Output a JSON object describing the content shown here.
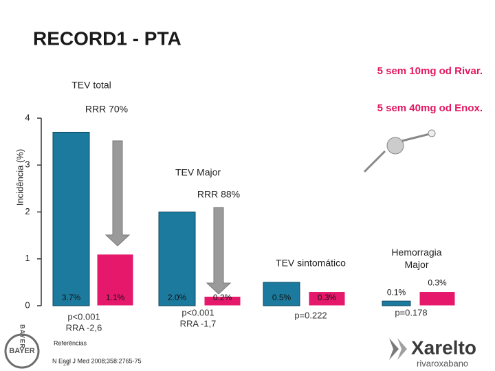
{
  "title": "RECORD1 - PTA",
  "chart_data": {
    "type": "bar",
    "y_label": "Incidência (%)",
    "categories": [
      "TEV total",
      "TEV Major",
      "TEV sintomático",
      "Hemorragia Major"
    ],
    "series": [
      {
        "name": "5 sem 40mg od Enox.",
        "color": "#1b7a9d",
        "values": [
          3.7,
          2.0,
          0.5,
          0.1
        ],
        "value_labels": [
          "3.7%",
          "2.0%",
          "0.5%",
          "0.1%"
        ]
      },
      {
        "name": "5 sem 10mg od Rivar.",
        "color": "#e5186c",
        "values": [
          1.1,
          0.2,
          0.3,
          0.3
        ],
        "value_labels": [
          "1.1%",
          "0.2%",
          "0.3%",
          "0.3%"
        ]
      }
    ],
    "ylim": [
      0,
      4
    ],
    "yticks": [
      0,
      1,
      2,
      3,
      4
    ],
    "annotations": [
      {
        "rrr": "RRR 70%",
        "p": "p<0.001",
        "rra": "RRA -2,6"
      },
      {
        "rrr": "RRR 88%",
        "p": "p<0.001",
        "rra": "RRA -1,7"
      },
      {
        "p": "p=0.222"
      },
      {
        "p": "p=0.178"
      }
    ]
  },
  "references": {
    "heading": "Referências",
    "citation": "N Engl J Med 2008;358:2765-75",
    "page_number": "28"
  },
  "logos": {
    "bayer": "BAYER",
    "brand": "Xarelto",
    "brand_sub": "rivaroxabano"
  }
}
